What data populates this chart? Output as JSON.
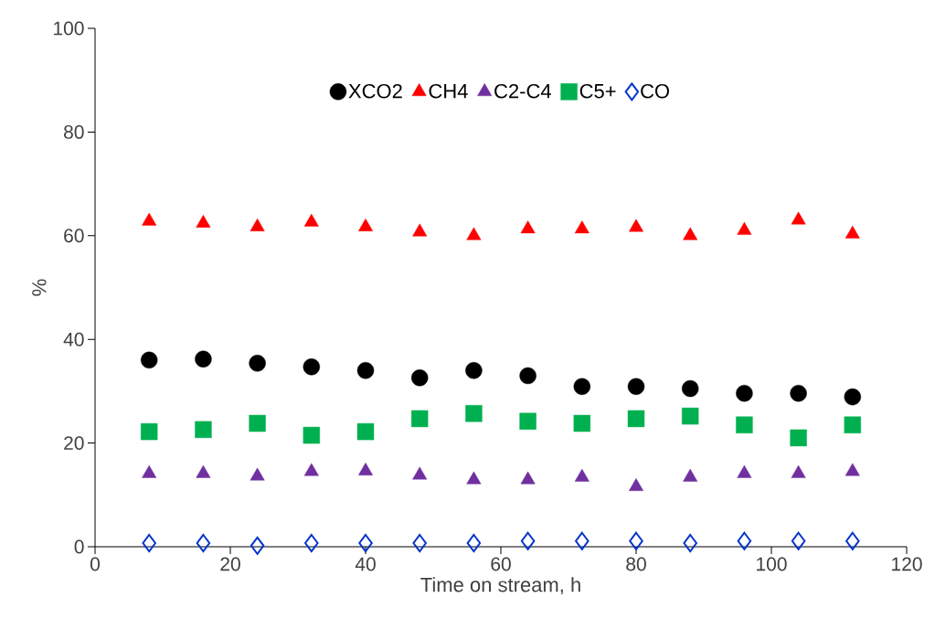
{
  "chart_data": {
    "type": "scatter",
    "xlabel": "Time on stream, h",
    "ylabel": "%",
    "x": [
      8,
      16,
      24,
      32,
      40,
      48,
      56,
      64,
      72,
      80,
      88,
      96,
      104,
      112
    ],
    "xlim": [
      0,
      120
    ],
    "xticks": [
      0,
      20,
      40,
      60,
      80,
      100,
      120
    ],
    "ylim": [
      0,
      100
    ],
    "yticks": [
      0,
      20,
      40,
      60,
      80,
      100
    ],
    "grid": false,
    "legend": "top",
    "series": [
      {
        "name": "XCO2",
        "color": "#000000",
        "marker": "circle",
        "values": [
          36.0,
          36.2,
          35.4,
          34.7,
          34.0,
          32.6,
          34.0,
          33.0,
          30.9,
          30.9,
          30.5,
          29.6,
          29.6,
          28.9
        ]
      },
      {
        "name": "CH4",
        "color": "#ff0000",
        "marker": "triangle",
        "values": [
          62.8,
          62.4,
          61.7,
          62.6,
          61.7,
          60.7,
          60.0,
          61.3,
          61.3,
          61.6,
          60.0,
          61.0,
          63.0,
          60.3
        ]
      },
      {
        "name": "C2-C4",
        "color": "#7030a0",
        "marker": "triangle",
        "values": [
          14.1,
          14.1,
          13.6,
          14.5,
          14.6,
          13.8,
          12.9,
          12.9,
          13.4,
          11.6,
          13.4,
          14.1,
          14.1,
          14.5
        ]
      },
      {
        "name": "C5+",
        "color": "#00b050",
        "marker": "square",
        "values": [
          22.2,
          22.6,
          23.8,
          21.5,
          22.2,
          24.7,
          25.7,
          24.2,
          23.8,
          24.7,
          25.2,
          23.5,
          21.0,
          23.5
        ]
      },
      {
        "name": "CO",
        "color": "#0033cc",
        "marker": "diamond",
        "values": [
          0.7,
          0.7,
          0.2,
          0.7,
          0.7,
          0.7,
          0.7,
          1.1,
          1.1,
          1.1,
          0.7,
          1.1,
          1.1,
          1.1
        ]
      }
    ]
  }
}
